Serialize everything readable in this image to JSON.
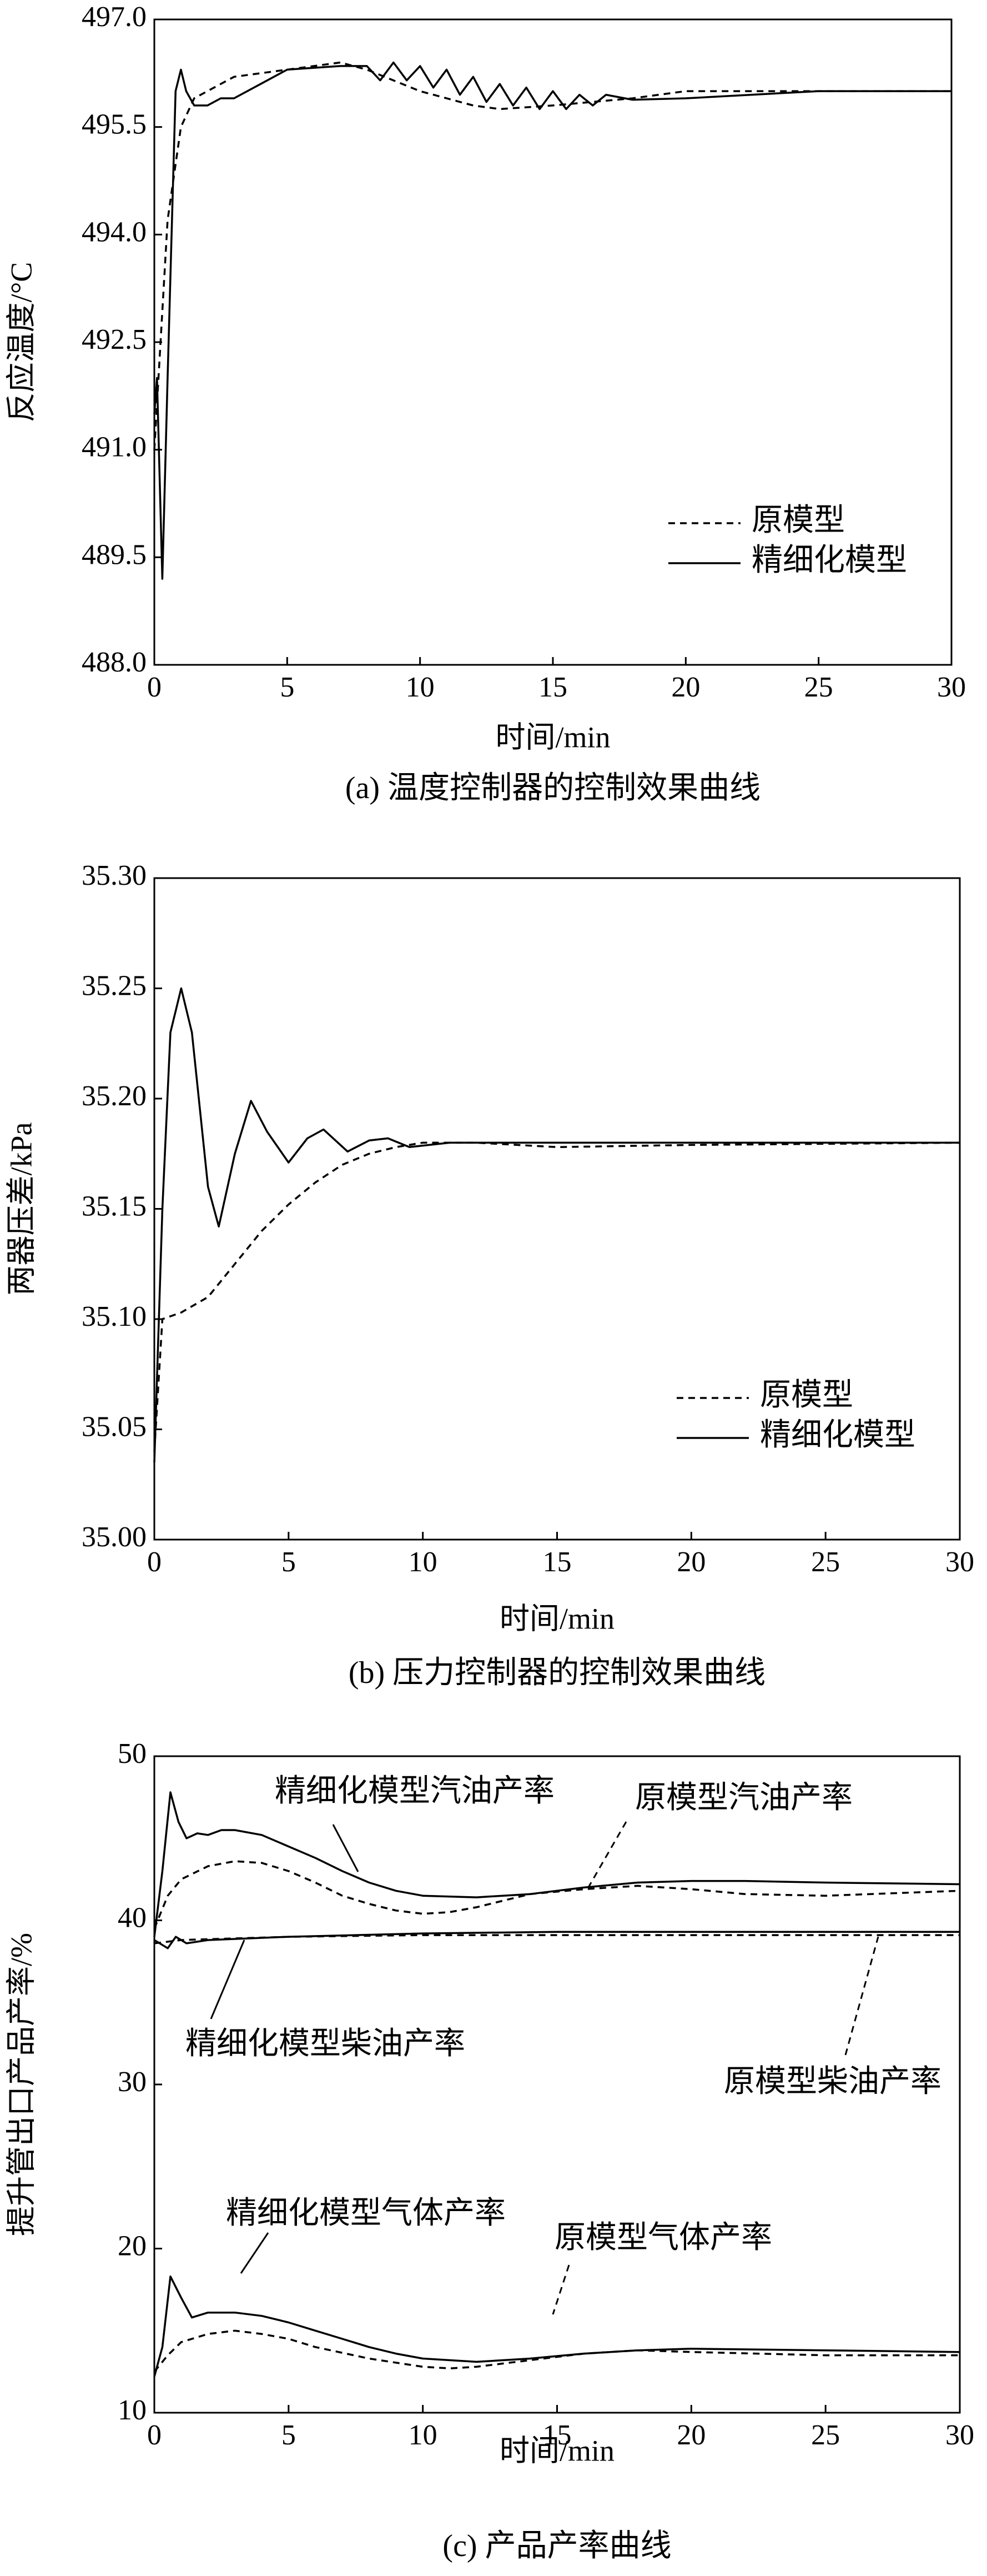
{
  "chart_data": [
    {
      "type": "line",
      "xlabel": "时间/min",
      "ylabel": "反应温度/°C",
      "caption": "(a) 温度控制器的控制效果曲线",
      "xlim": [
        0,
        30
      ],
      "xticks": [
        0,
        5,
        10,
        15,
        20,
        25,
        30
      ],
      "ylim": [
        488,
        497
      ],
      "yticks": [
        {
          "value": 488,
          "label": "488.0"
        },
        {
          "value": 489.5,
          "label": "489.5"
        },
        {
          "value": 491,
          "label": "491.0"
        },
        {
          "value": 492.5,
          "label": "492.5"
        },
        {
          "value": 494,
          "label": "494.0"
        },
        {
          "value": 495.5,
          "label": "495.5"
        },
        {
          "value": 497,
          "label": "497.0"
        }
      ],
      "legend": "lower right",
      "series": [
        {
          "name": "原模型",
          "color": "#000000",
          "dashed": true,
          "x": [
            0,
            0.5,
            1,
            1.5,
            2,
            3,
            5,
            7,
            8,
            10,
            12,
            13,
            15,
            18,
            20,
            25,
            30
          ],
          "values": [
            491,
            494.2,
            495.5,
            495.9,
            496.0,
            496.2,
            496.3,
            496.4,
            496.3,
            496.0,
            495.8,
            495.75,
            495.8,
            495.9,
            496.0,
            496.0,
            496.0
          ]
        },
        {
          "name": "精细化模型",
          "color": "#000000",
          "dashed": false,
          "x": [
            0,
            0.1,
            0.3,
            0.5,
            0.8,
            1.0,
            1.2,
            1.5,
            2,
            2.5,
            3,
            4,
            5,
            7,
            8,
            8.5,
            9,
            9.5,
            10,
            10.5,
            11,
            11.5,
            12,
            12.5,
            13,
            13.5,
            14,
            14.5,
            15,
            15.5,
            16,
            16.5,
            17,
            18,
            20,
            25,
            30
          ],
          "values": [
            491.5,
            492,
            489.2,
            492,
            496.0,
            496.3,
            496.0,
            495.8,
            495.8,
            495.9,
            495.9,
            496.1,
            496.3,
            496.35,
            496.35,
            496.15,
            496.4,
            496.15,
            496.35,
            496.05,
            496.3,
            495.95,
            496.2,
            495.85,
            496.1,
            495.8,
            496.05,
            495.75,
            496.0,
            495.75,
            495.95,
            495.8,
            495.95,
            495.88,
            495.9,
            496.0,
            496.0
          ]
        }
      ]
    },
    {
      "type": "line",
      "xlabel": "时间/min",
      "ylabel": "两器压差/kPa",
      "caption": "(b) 压力控制器的控制效果曲线",
      "xlim": [
        0,
        30
      ],
      "xticks": [
        0,
        5,
        10,
        15,
        20,
        25,
        30
      ],
      "ylim": [
        35.0,
        35.3
      ],
      "yticks": [
        {
          "value": 35.0,
          "label": "35.00"
        },
        {
          "value": 35.05,
          "label": "35.05"
        },
        {
          "value": 35.1,
          "label": "35.10"
        },
        {
          "value": 35.15,
          "label": "35.15"
        },
        {
          "value": 35.2,
          "label": "35.20"
        },
        {
          "value": 35.25,
          "label": "35.25"
        },
        {
          "value": 35.3,
          "label": "35.30"
        }
      ],
      "legend": "lower right",
      "series": [
        {
          "name": "原模型",
          "color": "#000000",
          "dashed": true,
          "x": [
            0,
            0.3,
            1,
            2,
            3,
            4,
            5,
            6,
            7,
            8,
            9,
            10,
            12,
            15,
            20,
            30
          ],
          "values": [
            35.04,
            35.1,
            35.103,
            35.11,
            35.125,
            35.14,
            35.152,
            35.162,
            35.17,
            35.175,
            35.178,
            35.18,
            35.18,
            35.178,
            35.179,
            35.18
          ]
        },
        {
          "name": "精细化模型",
          "color": "#000000",
          "dashed": false,
          "x": [
            0,
            0.3,
            0.6,
            1.0,
            1.4,
            2.0,
            2.4,
            3.0,
            3.6,
            4.2,
            5.0,
            5.7,
            6.3,
            7.2,
            8.0,
            8.7,
            9.5,
            11,
            15,
            20,
            30
          ],
          "values": [
            35.035,
            35.15,
            35.23,
            35.25,
            35.23,
            35.16,
            35.142,
            35.175,
            35.199,
            35.185,
            35.171,
            35.182,
            35.186,
            35.176,
            35.181,
            35.182,
            35.178,
            35.18,
            35.18,
            35.18,
            35.18
          ]
        }
      ]
    },
    {
      "type": "line",
      "xlabel": "时间/min",
      "ylabel": "提升管出口产品产率/%",
      "caption": "(c) 产品产率曲线",
      "xlim": [
        0,
        30
      ],
      "xticks": [
        0,
        5,
        10,
        15,
        20,
        25,
        30
      ],
      "ylim": [
        10,
        50
      ],
      "yticks": [
        10,
        20,
        30,
        40,
        50
      ],
      "legend": "annotations",
      "series": [
        {
          "name": "精细化模型汽油产率",
          "color": "#000000",
          "dashed": false,
          "x": [
            0,
            0.3,
            0.6,
            0.9,
            1.2,
            1.6,
            2,
            2.5,
            3,
            4,
            5,
            6,
            7,
            8,
            9,
            10,
            12,
            14,
            16,
            18,
            20,
            22,
            25,
            30
          ],
          "values": [
            39,
            43,
            47.8,
            46,
            45,
            45.3,
            45.2,
            45.5,
            45.5,
            45.2,
            44.5,
            43.8,
            43,
            42.3,
            41.8,
            41.5,
            41.4,
            41.6,
            42,
            42.3,
            42.4,
            42.4,
            42.3,
            42.2
          ]
        },
        {
          "name": "原模型汽油产率",
          "color": "#000000",
          "dashed": true,
          "x": [
            0,
            0.5,
            1,
            2,
            3,
            4,
            5,
            6,
            7,
            8,
            9,
            10,
            11,
            12,
            13,
            14,
            16,
            18,
            20,
            22,
            25,
            30
          ],
          "values": [
            39.5,
            41.5,
            42.5,
            43.3,
            43.6,
            43.5,
            43,
            42.3,
            41.5,
            41,
            40.6,
            40.4,
            40.5,
            40.8,
            41.2,
            41.6,
            41.9,
            42.1,
            41.9,
            41.6,
            41.5,
            41.8
          ]
        },
        {
          "name": "精细化模型柴油产率",
          "color": "#000000",
          "dashed": false,
          "x": [
            0,
            0.5,
            0.8,
            1.2,
            2,
            5,
            10,
            15,
            20,
            30
          ],
          "values": [
            38.8,
            38.3,
            39,
            38.6,
            38.8,
            39,
            39.2,
            39.3,
            39.3,
            39.3
          ]
        },
        {
          "name": "原模型柴油产率",
          "color": "#000000",
          "dashed": true,
          "x": [
            0,
            1,
            3,
            5,
            10,
            20,
            30
          ],
          "values": [
            38.6,
            38.8,
            38.9,
            39,
            39.1,
            39.1,
            39.1
          ]
        },
        {
          "name": "精细化模型气体产率",
          "color": "#000000",
          "dashed": false,
          "x": [
            0,
            0.3,
            0.6,
            1,
            1.4,
            2,
            3,
            4,
            5,
            6,
            7,
            8,
            9,
            10,
            12,
            14,
            16,
            18,
            20,
            25,
            30
          ],
          "values": [
            12.2,
            14,
            18.3,
            17,
            15.8,
            16.1,
            16.1,
            15.9,
            15.5,
            15,
            14.5,
            14,
            13.6,
            13.3,
            13.1,
            13.3,
            13.6,
            13.8,
            13.9,
            13.8,
            13.7
          ]
        },
        {
          "name": "原模型气体产率",
          "color": "#000000",
          "dashed": true,
          "x": [
            0,
            0.5,
            1,
            2,
            3,
            4,
            5,
            6,
            8,
            10,
            11,
            12,
            14,
            16,
            18,
            20,
            25,
            30
          ],
          "values": [
            12.5,
            13.5,
            14.3,
            14.8,
            15,
            14.8,
            14.5,
            14,
            13.3,
            12.8,
            12.7,
            12.8,
            13.2,
            13.6,
            13.8,
            13.7,
            13.5,
            13.5
          ]
        }
      ]
    }
  ]
}
